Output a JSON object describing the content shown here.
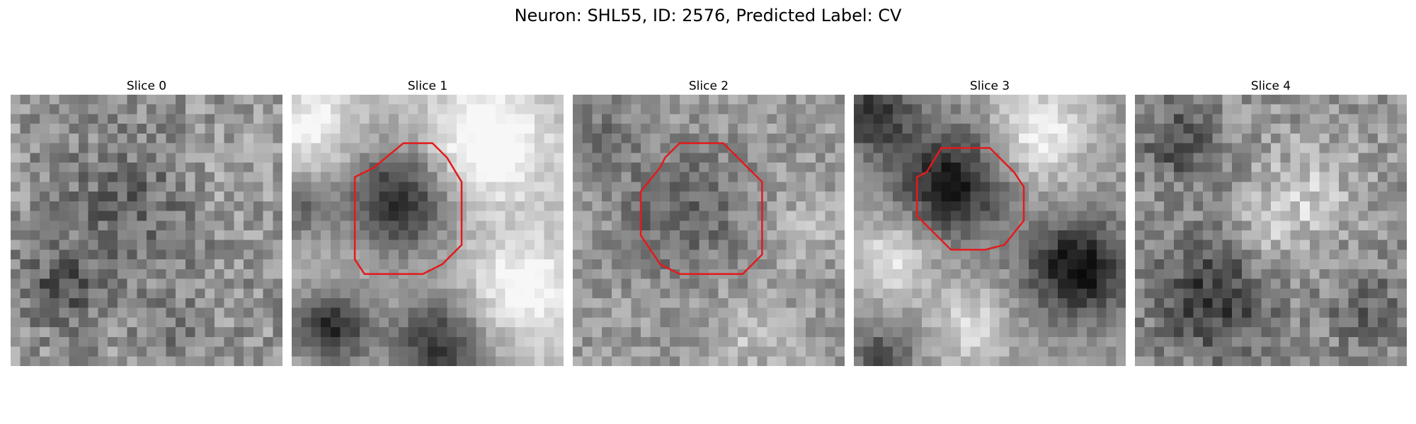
{
  "figure": {
    "title": "Neuron: SHL55, ID: 2576, Predicted Label: CV"
  },
  "colors": {
    "contour": "#e31a1c"
  },
  "slices": [
    {
      "title": "Slice 0"
    },
    {
      "title": "Slice 1"
    },
    {
      "title": "Slice 2"
    },
    {
      "title": "Slice 3"
    },
    {
      "title": "Slice 4"
    }
  ]
}
